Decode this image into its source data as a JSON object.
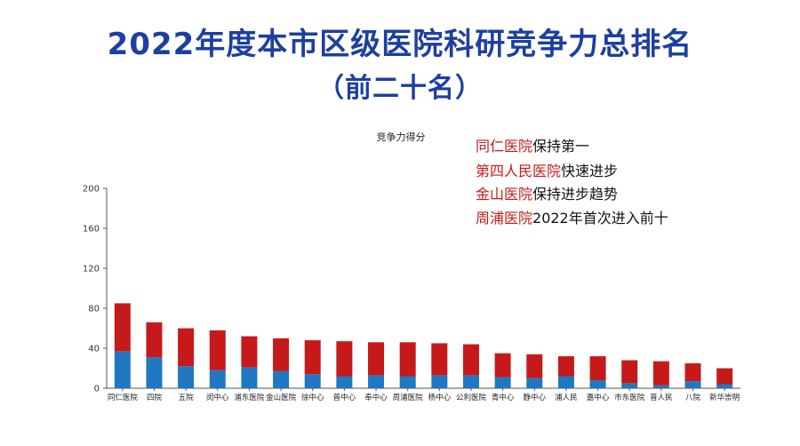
{
  "title": "2022年度本市区级医院科研竞争力总排名",
  "subtitle": "（前二十名）",
  "annotations": [
    {
      "highlight": "同仁医院",
      "text": "保持第一"
    },
    {
      "highlight": "第四人民医院",
      "text": "快速进步"
    },
    {
      "highlight": "金山医院",
      "text": "保持进步趋势"
    },
    {
      "highlight": "周浦医院",
      "text": "2022年首次进入前十"
    }
  ],
  "colors": {
    "title": "#1d3fa0",
    "highlight": "#c61a1a",
    "bar_top": "#c61a1a",
    "bar_bottom": "#1f78c1"
  },
  "chart_data": {
    "type": "bar",
    "stacked": true,
    "title": "竞争力得分",
    "categories": [
      "同仁医院",
      "四院",
      "五院",
      "闵中心",
      "浦东医院",
      "金山医院",
      "徐中心",
      "普中心",
      "奉中心",
      "周浦医院",
      "杨中心",
      "公利医院",
      "青中心",
      "静中心",
      "浦人民",
      "嘉中心",
      "市东医院",
      "普人民",
      "八院",
      "新华崇明"
    ],
    "series": [
      {
        "color": "#1f78c1",
        "values": [
          37,
          31,
          22,
          18,
          21,
          17,
          14,
          12,
          13,
          12,
          13,
          13,
          11,
          10,
          12,
          8,
          5,
          3,
          7,
          4
        ]
      },
      {
        "color": "#c61a1a",
        "values": [
          48,
          35,
          38,
          40,
          31,
          33,
          34,
          35,
          33,
          34,
          32,
          31,
          24,
          24,
          20,
          24,
          23,
          24,
          18,
          16
        ]
      }
    ],
    "totals": [
      85,
      66,
      60,
      58,
      52,
      50,
      48,
      47,
      46,
      46,
      45,
      44,
      35,
      34,
      32,
      32,
      28,
      27,
      25,
      20
    ],
    "ylim": [
      0,
      200
    ],
    "yticks": [
      0,
      40,
      80,
      120,
      160,
      200
    ],
    "grid": false,
    "legend": "none"
  }
}
